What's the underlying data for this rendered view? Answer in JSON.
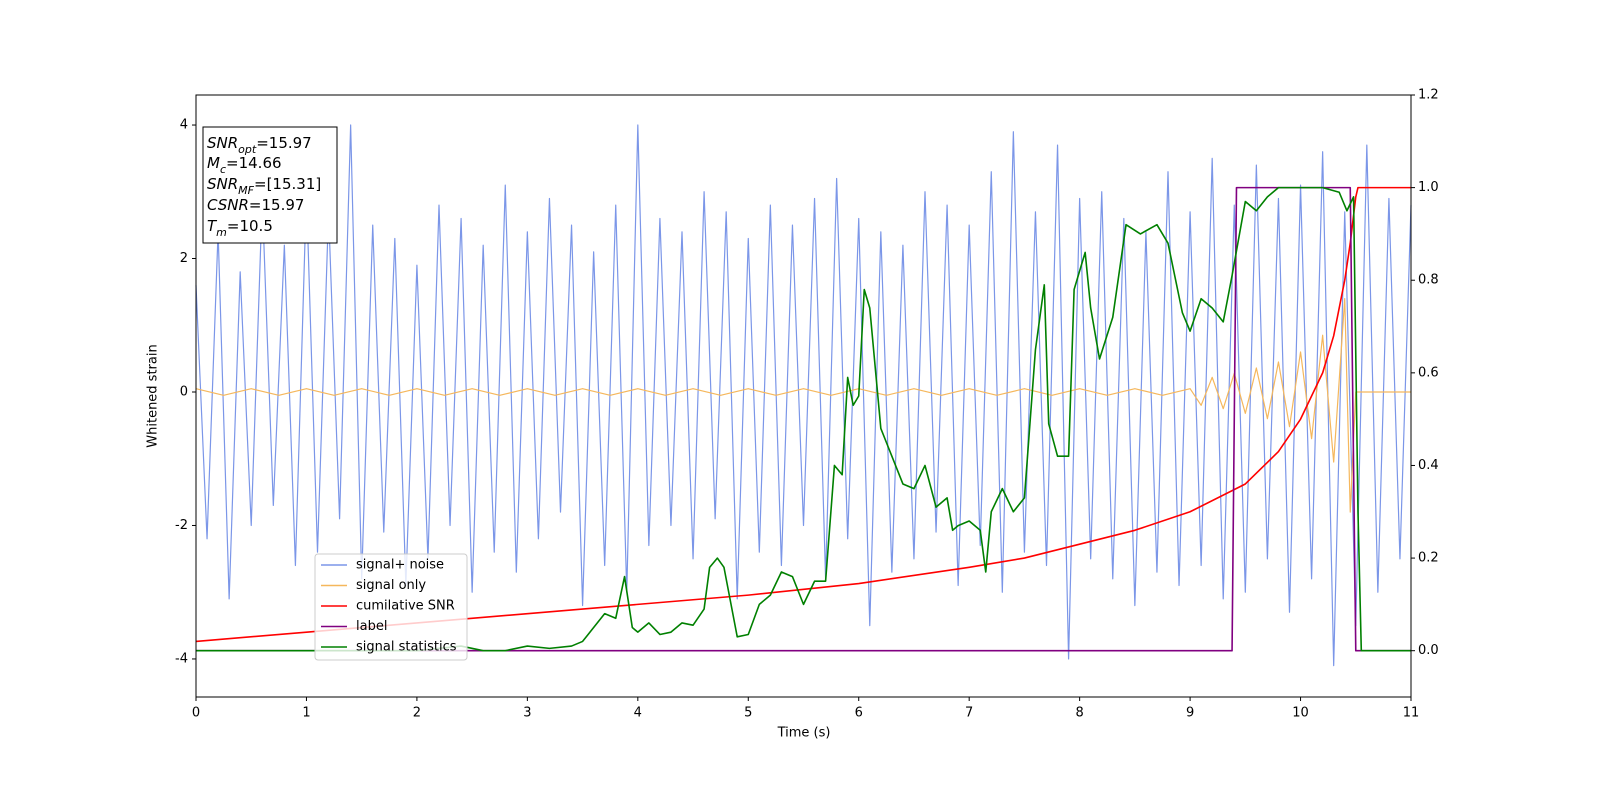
{
  "chart_data": {
    "type": "line",
    "xlabel": "Time (s)",
    "ylabel": "Whitened strain",
    "xlim": [
      0,
      11
    ],
    "xticks": [
      0,
      1,
      2,
      3,
      4,
      5,
      6,
      7,
      8,
      9,
      10,
      11
    ],
    "ylim": [
      -4.57,
      4.45
    ],
    "yticks": [
      -4,
      -2,
      0,
      2,
      4
    ],
    "y2lim": [
      -0.1,
      1.2
    ],
    "y2ticks": [
      {
        "value": 0,
        "label": "0.0"
      },
      {
        "value": 0.2,
        "label": "0.2"
      },
      {
        "value": 0.4,
        "label": "0.4"
      },
      {
        "value": 0.6,
        "label": "0.6"
      },
      {
        "value": 0.8,
        "label": "0.8"
      },
      {
        "value": 1.0,
        "label": "1.0"
      },
      {
        "value": 1.2,
        "label": "1.2"
      }
    ],
    "legend": "lower left",
    "annotations": [
      {
        "base": "SNR",
        "sub": "opt",
        "text": "=15.97"
      },
      {
        "base": "M",
        "sub": "c",
        "text": "=14.66"
      },
      {
        "base": "SNR",
        "sub": "MF",
        "text": "=[15.31]"
      },
      {
        "base": "CSNR",
        "text": "=15.97"
      },
      {
        "base": "T",
        "sub": "m",
        "text": "=10.5"
      }
    ],
    "series": [
      {
        "name": "signal+ noise",
        "color": "#7b96e8",
        "x": [
          0,
          0.1,
          0.2,
          0.3,
          0.4,
          0.5,
          0.6,
          0.7,
          0.8,
          0.9,
          1,
          1.1,
          1.2,
          1.3,
          1.4,
          1.5,
          1.6,
          1.7,
          1.8,
          1.9,
          2,
          2.1,
          2.2,
          2.3,
          2.4,
          2.5,
          2.6,
          2.7,
          2.8,
          2.9,
          3,
          3.1,
          3.2,
          3.3,
          3.4,
          3.5,
          3.6,
          3.7,
          3.8,
          3.9,
          4,
          4.1,
          4.2,
          4.3,
          4.4,
          4.5,
          4.6,
          4.7,
          4.8,
          4.9,
          5,
          5.1,
          5.2,
          5.3,
          5.4,
          5.5,
          5.6,
          5.7,
          5.8,
          5.9,
          6,
          6.1,
          6.2,
          6.3,
          6.4,
          6.5,
          6.6,
          6.7,
          6.8,
          6.9,
          7,
          7.1,
          7.2,
          7.3,
          7.4,
          7.5,
          7.6,
          7.7,
          7.8,
          7.9,
          8,
          8.1,
          8.2,
          8.3,
          8.4,
          8.5,
          8.6,
          8.7,
          8.8,
          8.9,
          9,
          9.1,
          9.2,
          9.3,
          9.4,
          9.5,
          9.6,
          9.7,
          9.8,
          9.9,
          10,
          10.1,
          10.2,
          10.3,
          10.4,
          10.5,
          10.6,
          10.7,
          10.8,
          10.9,
          11
        ],
        "values": [
          1.6,
          -2.2,
          2.4,
          -3.1,
          1.8,
          -2.0,
          2.9,
          -1.7,
          2.2,
          -2.6,
          3.0,
          -2.4,
          2.7,
          -1.9,
          4.0,
          -2.8,
          2.5,
          -2.1,
          2.3,
          -2.9,
          1.9,
          -2.5,
          2.8,
          -2.0,
          2.6,
          -3.0,
          2.2,
          -2.4,
          3.1,
          -2.7,
          2.4,
          -2.2,
          2.9,
          -1.8,
          2.5,
          -3.2,
          2.1,
          -2.6,
          2.8,
          -3.0,
          4.0,
          -2.3,
          2.6,
          -2.0,
          2.4,
          -2.5,
          3.0,
          -1.9,
          2.7,
          -3.1,
          2.3,
          -2.4,
          2.8,
          -2.6,
          2.5,
          -2.0,
          2.9,
          -2.8,
          3.2,
          -2.2,
          2.6,
          -3.5,
          2.4,
          -2.7,
          2.2,
          -2.5,
          3.0,
          -2.1,
          2.8,
          -2.9,
          2.5,
          -2.3,
          3.3,
          -3.0,
          3.9,
          -2.4,
          2.7,
          -2.6,
          3.7,
          -4.0,
          2.9,
          -2.5,
          3.0,
          -2.8,
          2.6,
          -3.2,
          2.4,
          -2.7,
          3.3,
          -2.9,
          2.7,
          -2.6,
          3.5,
          -3.1,
          2.8,
          -3.0,
          3.4,
          -2.5,
          2.9,
          -3.3,
          3.1,
          -2.8,
          3.6,
          -4.1,
          2.7,
          -3.5,
          3.7,
          -3.0,
          2.9,
          -2.5,
          2.8
        ]
      },
      {
        "name": "signal only",
        "color": "#f5b75c",
        "x": [
          0,
          0.25,
          0.5,
          0.75,
          1,
          1.25,
          1.5,
          1.75,
          2,
          2.25,
          2.5,
          2.75,
          3,
          3.25,
          3.5,
          3.75,
          4,
          4.25,
          4.5,
          4.75,
          5,
          5.25,
          5.5,
          5.75,
          6,
          6.25,
          6.5,
          6.75,
          7,
          7.25,
          7.5,
          7.75,
          8,
          8.25,
          8.5,
          8.75,
          9,
          9.1,
          9.2,
          9.3,
          9.4,
          9.5,
          9.6,
          9.7,
          9.8,
          9.9,
          10,
          10.1,
          10.2,
          10.3,
          10.4,
          10.45,
          10.5,
          11
        ],
        "values": [
          0.05,
          -0.05,
          0.05,
          -0.05,
          0.05,
          -0.05,
          0.05,
          -0.05,
          0.05,
          -0.05,
          0.05,
          -0.05,
          0.05,
          -0.05,
          0.05,
          -0.05,
          0.05,
          -0.05,
          0.05,
          -0.05,
          0.05,
          -0.05,
          0.05,
          -0.05,
          0.05,
          -0.05,
          0.05,
          -0.05,
          0.05,
          -0.05,
          0.05,
          -0.05,
          0.05,
          -0.05,
          0.05,
          -0.05,
          0.05,
          -0.2,
          0.22,
          -0.25,
          0.28,
          -0.32,
          0.36,
          -0.4,
          0.45,
          -0.52,
          0.6,
          -0.7,
          0.85,
          -1.05,
          1.4,
          -1.8,
          0,
          0
        ]
      },
      {
        "name": "cumilative SNR",
        "color": "#ff0000",
        "axis": "y2",
        "x": [
          0,
          1,
          2,
          3,
          4,
          5,
          6,
          7,
          7.5,
          8,
          8.5,
          9,
          9.5,
          9.8,
          10,
          10.2,
          10.3,
          10.4,
          10.45,
          10.5,
          10.52,
          11
        ],
        "values": [
          0.02,
          0.04,
          0.06,
          0.08,
          0.1,
          0.12,
          0.145,
          0.18,
          0.2,
          0.23,
          0.26,
          0.3,
          0.36,
          0.43,
          0.5,
          0.6,
          0.68,
          0.8,
          0.88,
          0.98,
          1.0,
          1.0
        ]
      },
      {
        "name": "label",
        "color": "#800080",
        "axis": "y2",
        "x": [
          0,
          9.38,
          9.42,
          10.45,
          10.5,
          11
        ],
        "values": [
          0,
          0,
          1,
          1,
          0,
          0
        ]
      },
      {
        "name": "signal statistics",
        "color": "#008000",
        "axis": "y2",
        "x": [
          0,
          1,
          2,
          2.4,
          2.6,
          2.8,
          3,
          3.2,
          3.4,
          3.5,
          3.6,
          3.7,
          3.8,
          3.88,
          3.95,
          4.0,
          4.1,
          4.2,
          4.3,
          4.4,
          4.5,
          4.6,
          4.65,
          4.72,
          4.78,
          4.9,
          5.0,
          5.1,
          5.2,
          5.3,
          5.4,
          5.5,
          5.6,
          5.7,
          5.78,
          5.85,
          5.9,
          5.95,
          6.0,
          6.05,
          6.1,
          6.2,
          6.3,
          6.4,
          6.5,
          6.6,
          6.7,
          6.8,
          6.85,
          6.9,
          7.0,
          7.1,
          7.15,
          7.2,
          7.3,
          7.4,
          7.5,
          7.6,
          7.68,
          7.72,
          7.8,
          7.9,
          7.95,
          8.05,
          8.1,
          8.18,
          8.3,
          8.42,
          8.55,
          8.7,
          8.8,
          8.93,
          9.0,
          9.1,
          9.2,
          9.3,
          9.38,
          9.5,
          9.6,
          9.7,
          9.8,
          10.0,
          10.2,
          10.35,
          10.42,
          10.48,
          10.52,
          10.55,
          11
        ],
        "values": [
          0,
          0,
          0,
          0.01,
          0,
          0,
          0.01,
          0.005,
          0.01,
          0.02,
          0.05,
          0.08,
          0.07,
          0.16,
          0.05,
          0.04,
          0.06,
          0.035,
          0.04,
          0.06,
          0.055,
          0.09,
          0.18,
          0.2,
          0.18,
          0.03,
          0.035,
          0.1,
          0.12,
          0.17,
          0.16,
          0.1,
          0.15,
          0.15,
          0.4,
          0.38,
          0.59,
          0.53,
          0.55,
          0.78,
          0.74,
          0.48,
          0.42,
          0.36,
          0.35,
          0.4,
          0.31,
          0.33,
          0.26,
          0.27,
          0.28,
          0.26,
          0.17,
          0.3,
          0.35,
          0.3,
          0.33,
          0.65,
          0.79,
          0.49,
          0.42,
          0.42,
          0.78,
          0.86,
          0.74,
          0.63,
          0.72,
          0.92,
          0.9,
          0.92,
          0.88,
          0.73,
          0.69,
          0.76,
          0.74,
          0.71,
          0.81,
          0.97,
          0.95,
          0.98,
          1.0,
          1.0,
          1.0,
          0.99,
          0.95,
          0.98,
          0.3,
          0,
          0
        ]
      }
    ]
  }
}
